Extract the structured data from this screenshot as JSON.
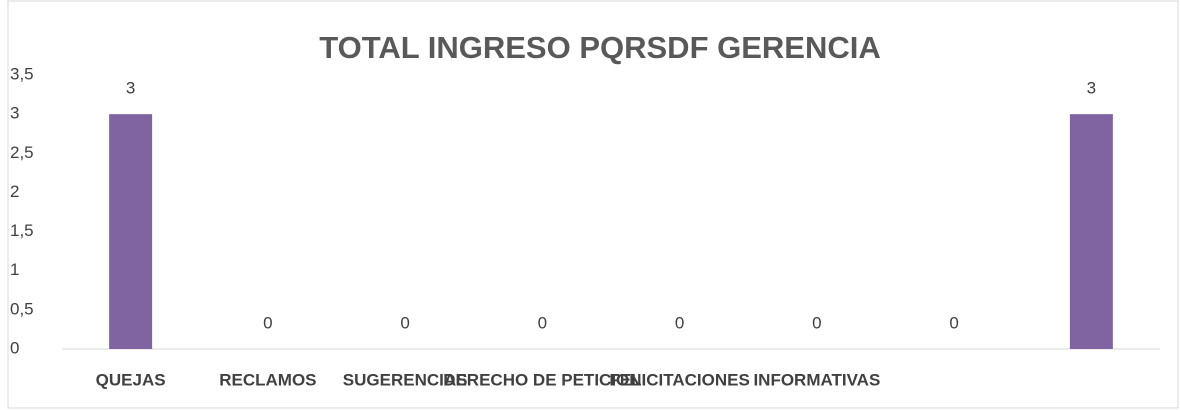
{
  "chart_data": {
    "type": "bar",
    "title": "TOTAL INGRESO PQRSDF GERENCIA",
    "categories": [
      "QUEJAS",
      "RECLAMOS",
      "SUGERENCIAS",
      "DERECHO DE PETICION",
      "FELICITACIONES",
      "INFORMATIVAS",
      null,
      null
    ],
    "values": [
      3,
      0,
      0,
      0,
      0,
      0,
      0,
      3
    ],
    "color": "#8064a2",
    "ylim": [
      0,
      3.5
    ],
    "yticks": [
      0,
      {
        "value": 0.5,
        "label": "0,5"
      },
      1,
      {
        "value": 1.5,
        "label": "1,5"
      },
      2,
      {
        "value": 2.5,
        "label": "2,5"
      },
      3,
      {
        "value": 3.5,
        "label": "3,5"
      }
    ],
    "grid": false
  }
}
